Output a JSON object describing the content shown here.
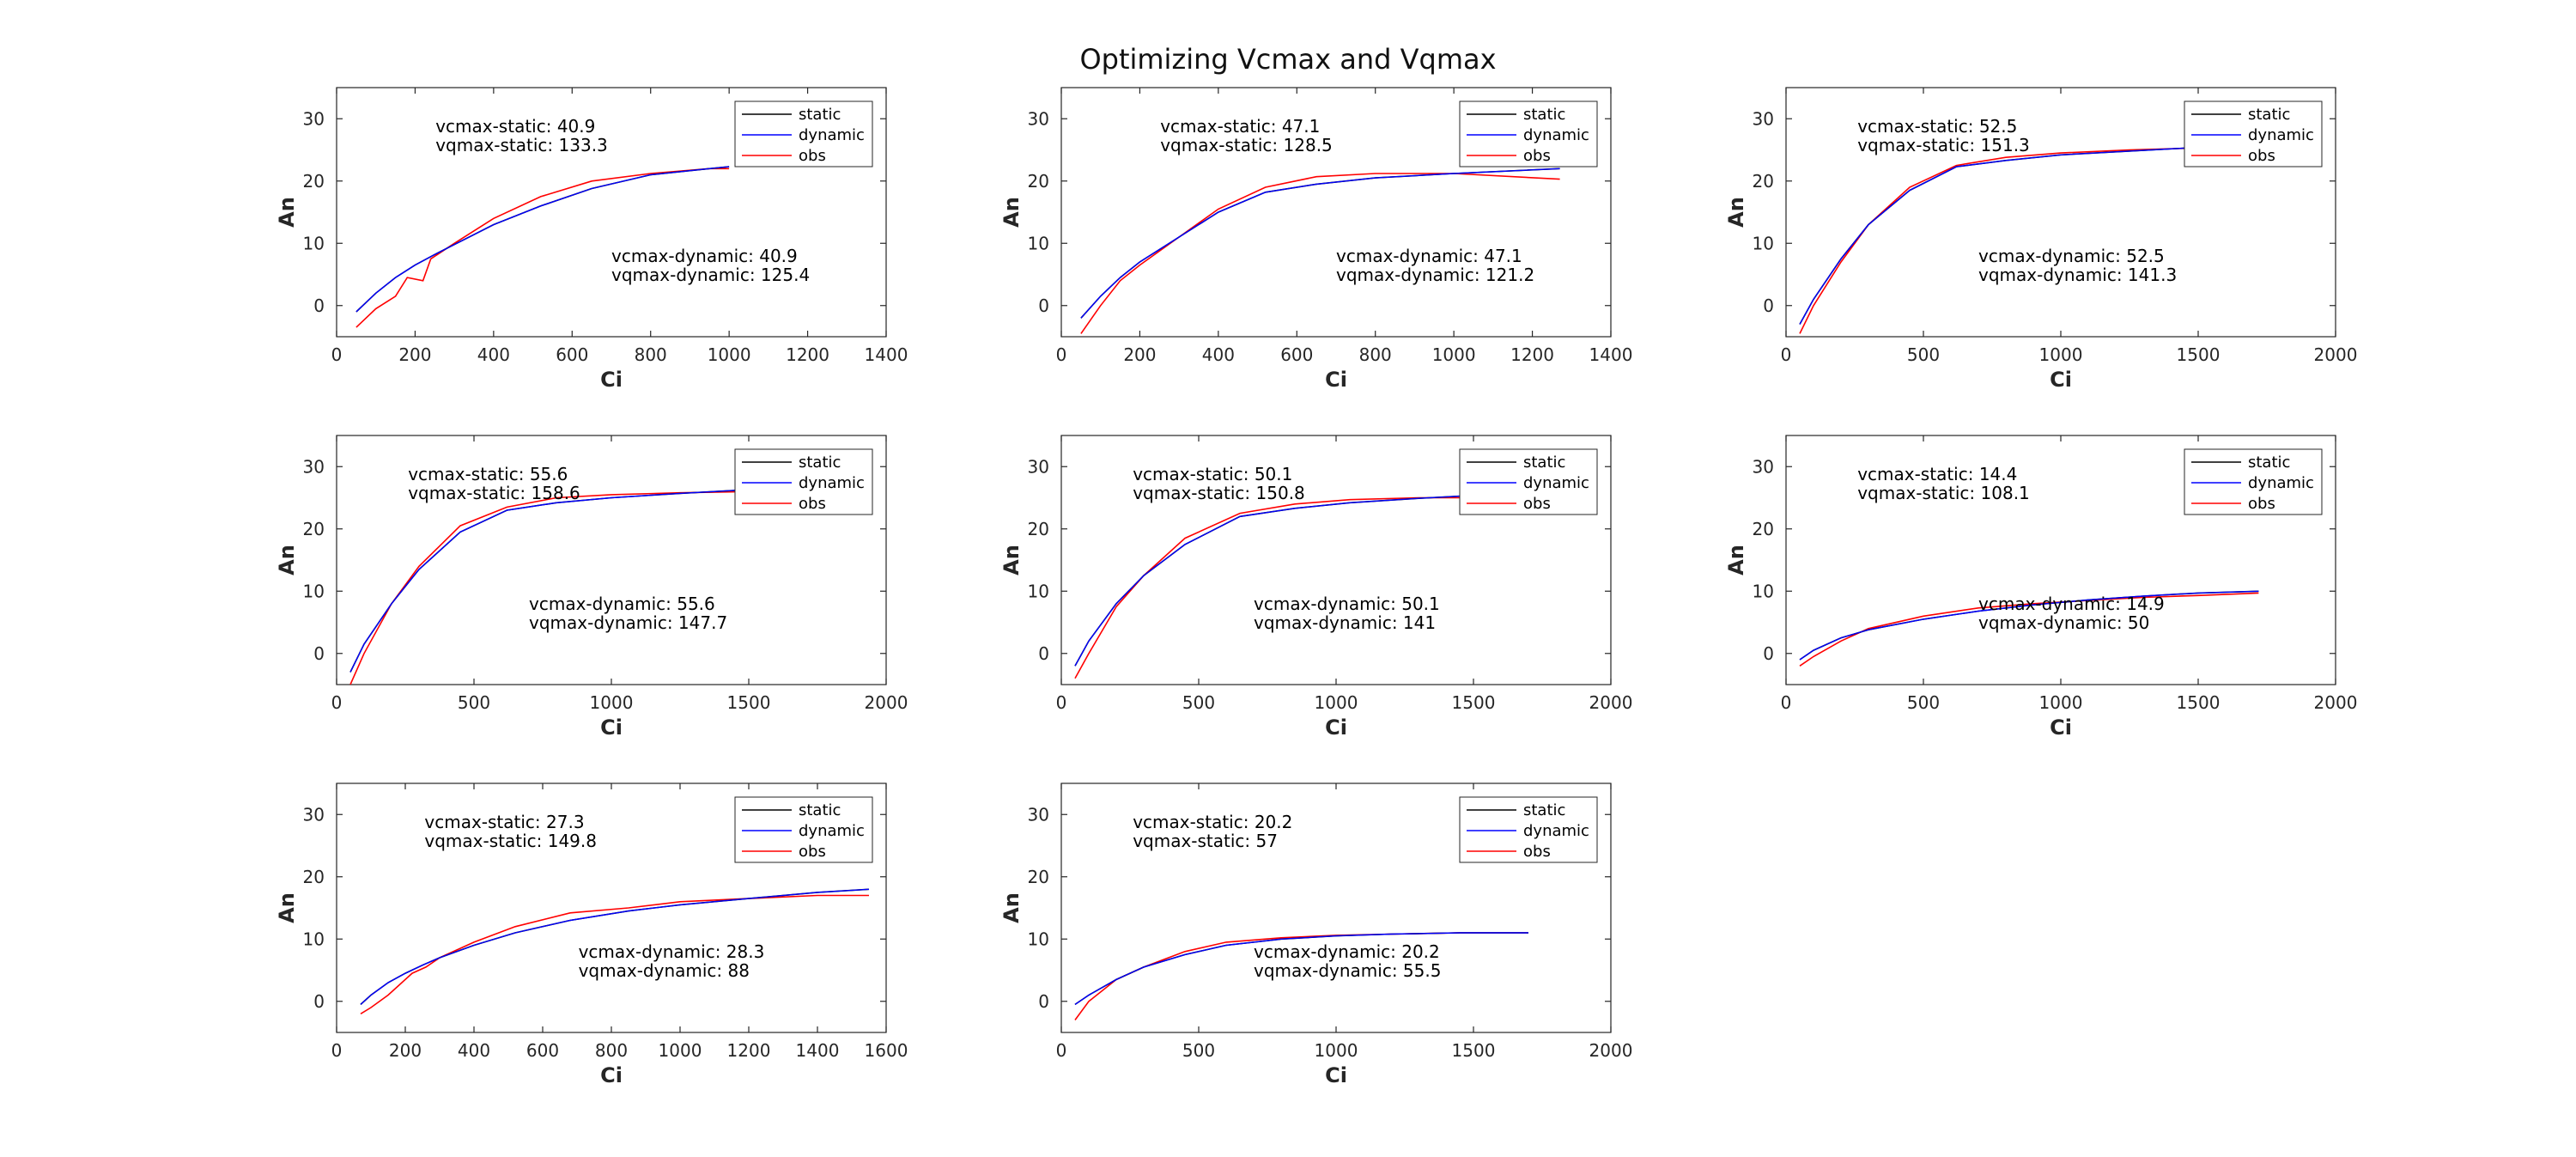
{
  "figure": {
    "title": "Optimizing Vcmax and Vqmax",
    "legend_entries": [
      "static",
      "dynamic",
      "obs"
    ],
    "colors": {
      "static": "#000000",
      "dynamic": "#0000ff",
      "obs": "#ff0000"
    }
  },
  "chart_data": [
    {
      "type": "line",
      "xlabel": "Ci",
      "ylabel": "An",
      "xlim": [
        0,
        1400
      ],
      "ylim": [
        -5,
        35
      ],
      "xticks": [
        0,
        200,
        400,
        600,
        800,
        1000,
        1200,
        1400
      ],
      "yticks": [
        0,
        10,
        20,
        30
      ],
      "legend": "top-right",
      "annotations": {
        "static": [
          "vcmax-static: 40.9",
          "vqmax-static: 133.3"
        ],
        "dynamic": [
          "vcmax-dynamic: 40.9",
          "vqmax-dynamic: 125.4"
        ]
      },
      "series": [
        {
          "name": "static",
          "x": [
            50,
            100,
            150,
            200,
            250,
            300,
            400,
            520,
            650,
            800,
            950,
            1000
          ],
          "y": [
            -1,
            2,
            4.5,
            6.5,
            8.2,
            9.8,
            13,
            16,
            18.8,
            21,
            22,
            22.3
          ]
        },
        {
          "name": "dynamic",
          "x": [
            50,
            100,
            150,
            200,
            250,
            300,
            400,
            520,
            650,
            800,
            950,
            1000
          ],
          "y": [
            -1,
            2,
            4.5,
            6.5,
            8.2,
            9.8,
            13,
            16,
            18.8,
            21,
            22,
            22.3
          ]
        },
        {
          "name": "obs",
          "x": [
            50,
            100,
            150,
            180,
            220,
            240,
            300,
            400,
            520,
            650,
            800,
            950,
            1000
          ],
          "y": [
            -3.5,
            -0.5,
            1.5,
            4.5,
            4,
            7.5,
            10,
            14,
            17.5,
            20,
            21.2,
            22,
            22
          ]
        }
      ]
    },
    {
      "type": "line",
      "xlabel": "Ci",
      "ylabel": "An",
      "xlim": [
        0,
        1400
      ],
      "ylim": [
        -5,
        35
      ],
      "xticks": [
        0,
        200,
        400,
        600,
        800,
        1000,
        1200,
        1400
      ],
      "yticks": [
        0,
        10,
        20,
        30
      ],
      "legend": "top-right",
      "annotations": {
        "static": [
          "vcmax-static: 47.1",
          "vqmax-static: 128.5"
        ],
        "dynamic": [
          "vcmax-dynamic: 47.1",
          "vqmax-dynamic: 121.2"
        ]
      },
      "series": [
        {
          "name": "static",
          "x": [
            50,
            100,
            150,
            200,
            300,
            400,
            520,
            650,
            800,
            1000,
            1270
          ],
          "y": [
            -2,
            1.5,
            4.5,
            7,
            11,
            15,
            18.2,
            19.5,
            20.5,
            21.2,
            22
          ]
        },
        {
          "name": "dynamic",
          "x": [
            50,
            100,
            150,
            200,
            300,
            400,
            520,
            650,
            800,
            1000,
            1270
          ],
          "y": [
            -2,
            1.5,
            4.5,
            7,
            11,
            15,
            18.2,
            19.5,
            20.5,
            21.2,
            22
          ]
        },
        {
          "name": "obs",
          "x": [
            50,
            100,
            150,
            200,
            300,
            400,
            520,
            650,
            800,
            1000,
            1270
          ],
          "y": [
            -4.5,
            0,
            4,
            6.5,
            11,
            15.5,
            19,
            20.7,
            21.2,
            21.2,
            20.3
          ]
        }
      ]
    },
    {
      "type": "line",
      "xlabel": "Ci",
      "ylabel": "An",
      "xlim": [
        0,
        2000
      ],
      "ylim": [
        -5,
        35
      ],
      "xticks": [
        0,
        500,
        1000,
        1500,
        2000
      ],
      "yticks": [
        0,
        10,
        20,
        30
      ],
      "legend": "top-right",
      "annotations": {
        "static": [
          "vcmax-static: 52.5",
          "vqmax-static: 151.3"
        ],
        "dynamic": [
          "vcmax-dynamic: 52.5",
          "vqmax-dynamic: 141.3"
        ]
      },
      "series": [
        {
          "name": "static",
          "x": [
            50,
            100,
            200,
            300,
            450,
            620,
            800,
            1000,
            1250,
            1500,
            1750
          ],
          "y": [
            -3,
            1,
            7.5,
            13,
            18.5,
            22.3,
            23.3,
            24.2,
            24.8,
            25.4,
            25.9
          ]
        },
        {
          "name": "dynamic",
          "x": [
            50,
            100,
            200,
            300,
            450,
            620,
            800,
            1000,
            1250,
            1500,
            1750
          ],
          "y": [
            -3,
            1,
            7.5,
            13,
            18.5,
            22.3,
            23.3,
            24.2,
            24.8,
            25.4,
            25.9
          ]
        },
        {
          "name": "obs",
          "x": [
            50,
            100,
            200,
            300,
            450,
            620,
            800,
            1000,
            1250,
            1500,
            1750
          ],
          "y": [
            -4.5,
            0,
            7,
            13,
            19,
            22.5,
            23.8,
            24.5,
            25,
            25.3,
            25.6
          ]
        }
      ]
    },
    {
      "type": "line",
      "xlabel": "Ci",
      "ylabel": "An",
      "xlim": [
        0,
        2000
      ],
      "ylim": [
        -5,
        35
      ],
      "xticks": [
        0,
        500,
        1000,
        1500,
        2000
      ],
      "yticks": [
        0,
        10,
        20,
        30
      ],
      "legend": "top-right",
      "annotations": {
        "static": [
          "vcmax-static: 55.6",
          "vqmax-static: 158.6"
        ],
        "dynamic": [
          "vcmax-dynamic: 55.6",
          "vqmax-dynamic: 147.7"
        ]
      },
      "series": [
        {
          "name": "static",
          "x": [
            50,
            100,
            200,
            300,
            450,
            620,
            800,
            1000,
            1250,
            1500,
            1800
          ],
          "y": [
            -3,
            1.5,
            8,
            13.5,
            19.5,
            23,
            24.2,
            25,
            25.7,
            26.3,
            27
          ]
        },
        {
          "name": "dynamic",
          "x": [
            50,
            100,
            200,
            300,
            450,
            620,
            800,
            1000,
            1250,
            1500,
            1800
          ],
          "y": [
            -3,
            1.5,
            8,
            13.5,
            19.5,
            23,
            24.2,
            25,
            25.7,
            26.3,
            27
          ]
        },
        {
          "name": "obs",
          "x": [
            50,
            100,
            200,
            300,
            450,
            620,
            800,
            1000,
            1250,
            1500,
            1800
          ],
          "y": [
            -5,
            0,
            8,
            14,
            20.5,
            23.5,
            25,
            25.5,
            25.8,
            26,
            26
          ]
        }
      ]
    },
    {
      "type": "line",
      "xlabel": "Ci",
      "ylabel": "An",
      "xlim": [
        0,
        2000
      ],
      "ylim": [
        -5,
        35
      ],
      "xticks": [
        0,
        500,
        1000,
        1500,
        2000
      ],
      "yticks": [
        0,
        10,
        20,
        30
      ],
      "legend": "top-right",
      "annotations": {
        "static": [
          "vcmax-static: 50.1",
          "vqmax-static: 150.8"
        ],
        "dynamic": [
          "vcmax-dynamic: 50.1",
          "vqmax-dynamic: 141"
        ]
      },
      "series": [
        {
          "name": "static",
          "x": [
            50,
            100,
            200,
            300,
            450,
            650,
            850,
            1050,
            1300,
            1550,
            1800
          ],
          "y": [
            -2,
            2,
            8,
            12.5,
            17.5,
            22,
            23.3,
            24.2,
            24.9,
            25.5,
            26
          ]
        },
        {
          "name": "dynamic",
          "x": [
            50,
            100,
            200,
            300,
            450,
            650,
            850,
            1050,
            1300,
            1550,
            1800
          ],
          "y": [
            -2,
            2,
            8,
            12.5,
            17.5,
            22,
            23.3,
            24.2,
            24.9,
            25.5,
            26
          ]
        },
        {
          "name": "obs",
          "x": [
            50,
            100,
            200,
            300,
            450,
            650,
            850,
            1050,
            1300,
            1550,
            1800
          ],
          "y": [
            -4,
            0,
            7.5,
            12.5,
            18.5,
            22.5,
            24,
            24.7,
            25,
            25,
            25.3
          ]
        }
      ]
    },
    {
      "type": "line",
      "xlabel": "Ci",
      "ylabel": "An",
      "xlim": [
        0,
        2000
      ],
      "ylim": [
        -5,
        35
      ],
      "xticks": [
        0,
        500,
        1000,
        1500,
        2000
      ],
      "yticks": [
        0,
        10,
        20,
        30
      ],
      "legend": "top-right",
      "annotations": {
        "static": [
          "vcmax-static: 14.4",
          "vqmax-static: 108.1"
        ],
        "dynamic": [
          "vcmax-dynamic: 14.9",
          "vqmax-dynamic: 50"
        ]
      },
      "series": [
        {
          "name": "static",
          "x": [
            50,
            100,
            200,
            300,
            500,
            700,
            900,
            1100,
            1300,
            1500,
            1720
          ],
          "y": [
            -1,
            0.5,
            2.5,
            3.8,
            5.5,
            6.8,
            7.8,
            8.6,
            9.2,
            9.7,
            10
          ]
        },
        {
          "name": "dynamic",
          "x": [
            50,
            100,
            200,
            300,
            500,
            700,
            900,
            1100,
            1300,
            1500,
            1720
          ],
          "y": [
            -1,
            0.5,
            2.5,
            3.8,
            5.5,
            6.8,
            7.8,
            8.6,
            9.2,
            9.7,
            10
          ]
        },
        {
          "name": "obs",
          "x": [
            50,
            100,
            200,
            300,
            500,
            700,
            900,
            1100,
            1300,
            1500,
            1720
          ],
          "y": [
            -2,
            -0.5,
            2,
            4,
            6,
            7.3,
            8,
            8.5,
            9,
            9.3,
            9.7
          ]
        }
      ]
    },
    {
      "type": "line",
      "xlabel": "Ci",
      "ylabel": "An",
      "xlim": [
        0,
        1600
      ],
      "ylim": [
        -5,
        35
      ],
      "xticks": [
        0,
        200,
        400,
        600,
        800,
        1000,
        1200,
        1400,
        1600
      ],
      "yticks": [
        0,
        10,
        20,
        30
      ],
      "legend": "top-right",
      "annotations": {
        "static": [
          "vcmax-static: 27.3",
          "vqmax-static: 149.8"
        ],
        "dynamic": [
          "vcmax-dynamic: 28.3",
          "vqmax-dynamic: 88"
        ]
      },
      "series": [
        {
          "name": "static",
          "x": [
            70,
            100,
            150,
            200,
            250,
            300,
            400,
            520,
            680,
            850,
            1000,
            1200,
            1400,
            1550
          ],
          "y": [
            -0.5,
            1,
            3,
            4.5,
            5.8,
            7,
            9,
            11,
            13,
            14.5,
            15.5,
            16.5,
            17.5,
            18
          ]
        },
        {
          "name": "dynamic",
          "x": [
            70,
            100,
            150,
            200,
            250,
            300,
            400,
            520,
            680,
            850,
            1000,
            1200,
            1400,
            1550
          ],
          "y": [
            -0.5,
            1,
            3,
            4.5,
            5.8,
            7,
            9,
            11,
            13,
            14.5,
            15.5,
            16.5,
            17.5,
            18
          ]
        },
        {
          "name": "obs",
          "x": [
            70,
            100,
            150,
            180,
            220,
            260,
            300,
            400,
            520,
            680,
            850,
            1000,
            1200,
            1400,
            1550
          ],
          "y": [
            -2,
            -1,
            1,
            2.5,
            4.5,
            5.5,
            7,
            9.5,
            12,
            14.2,
            15,
            16,
            16.5,
            17,
            17
          ]
        }
      ]
    },
    {
      "type": "line",
      "xlabel": "Ci",
      "ylabel": "An",
      "xlim": [
        0,
        2000
      ],
      "ylim": [
        -5,
        35
      ],
      "xticks": [
        0,
        500,
        1000,
        1500,
        2000
      ],
      "yticks": [
        0,
        10,
        20,
        30
      ],
      "legend": "top-right",
      "annotations": {
        "static": [
          "vcmax-static: 20.2",
          "vqmax-static: 57"
        ],
        "dynamic": [
          "vcmax-dynamic: 20.2",
          "vqmax-dynamic: 55.5"
        ]
      },
      "series": [
        {
          "name": "static",
          "x": [
            50,
            100,
            200,
            300,
            450,
            600,
            800,
            1000,
            1200,
            1450,
            1700
          ],
          "y": [
            -0.5,
            1,
            3.5,
            5.5,
            7.5,
            9,
            10,
            10.5,
            10.8,
            11,
            11
          ]
        },
        {
          "name": "dynamic",
          "x": [
            50,
            100,
            200,
            300,
            450,
            600,
            800,
            1000,
            1200,
            1450,
            1700
          ],
          "y": [
            -0.5,
            1,
            3.5,
            5.5,
            7.5,
            9,
            10,
            10.5,
            10.8,
            11,
            11
          ]
        },
        {
          "name": "obs",
          "x": [
            50,
            100,
            200,
            300,
            450,
            600,
            800,
            1000,
            1200,
            1450,
            1700
          ],
          "y": [
            -3,
            0,
            3.5,
            5.5,
            8,
            9.5,
            10.2,
            10.6,
            10.8,
            11,
            11
          ]
        }
      ]
    }
  ]
}
